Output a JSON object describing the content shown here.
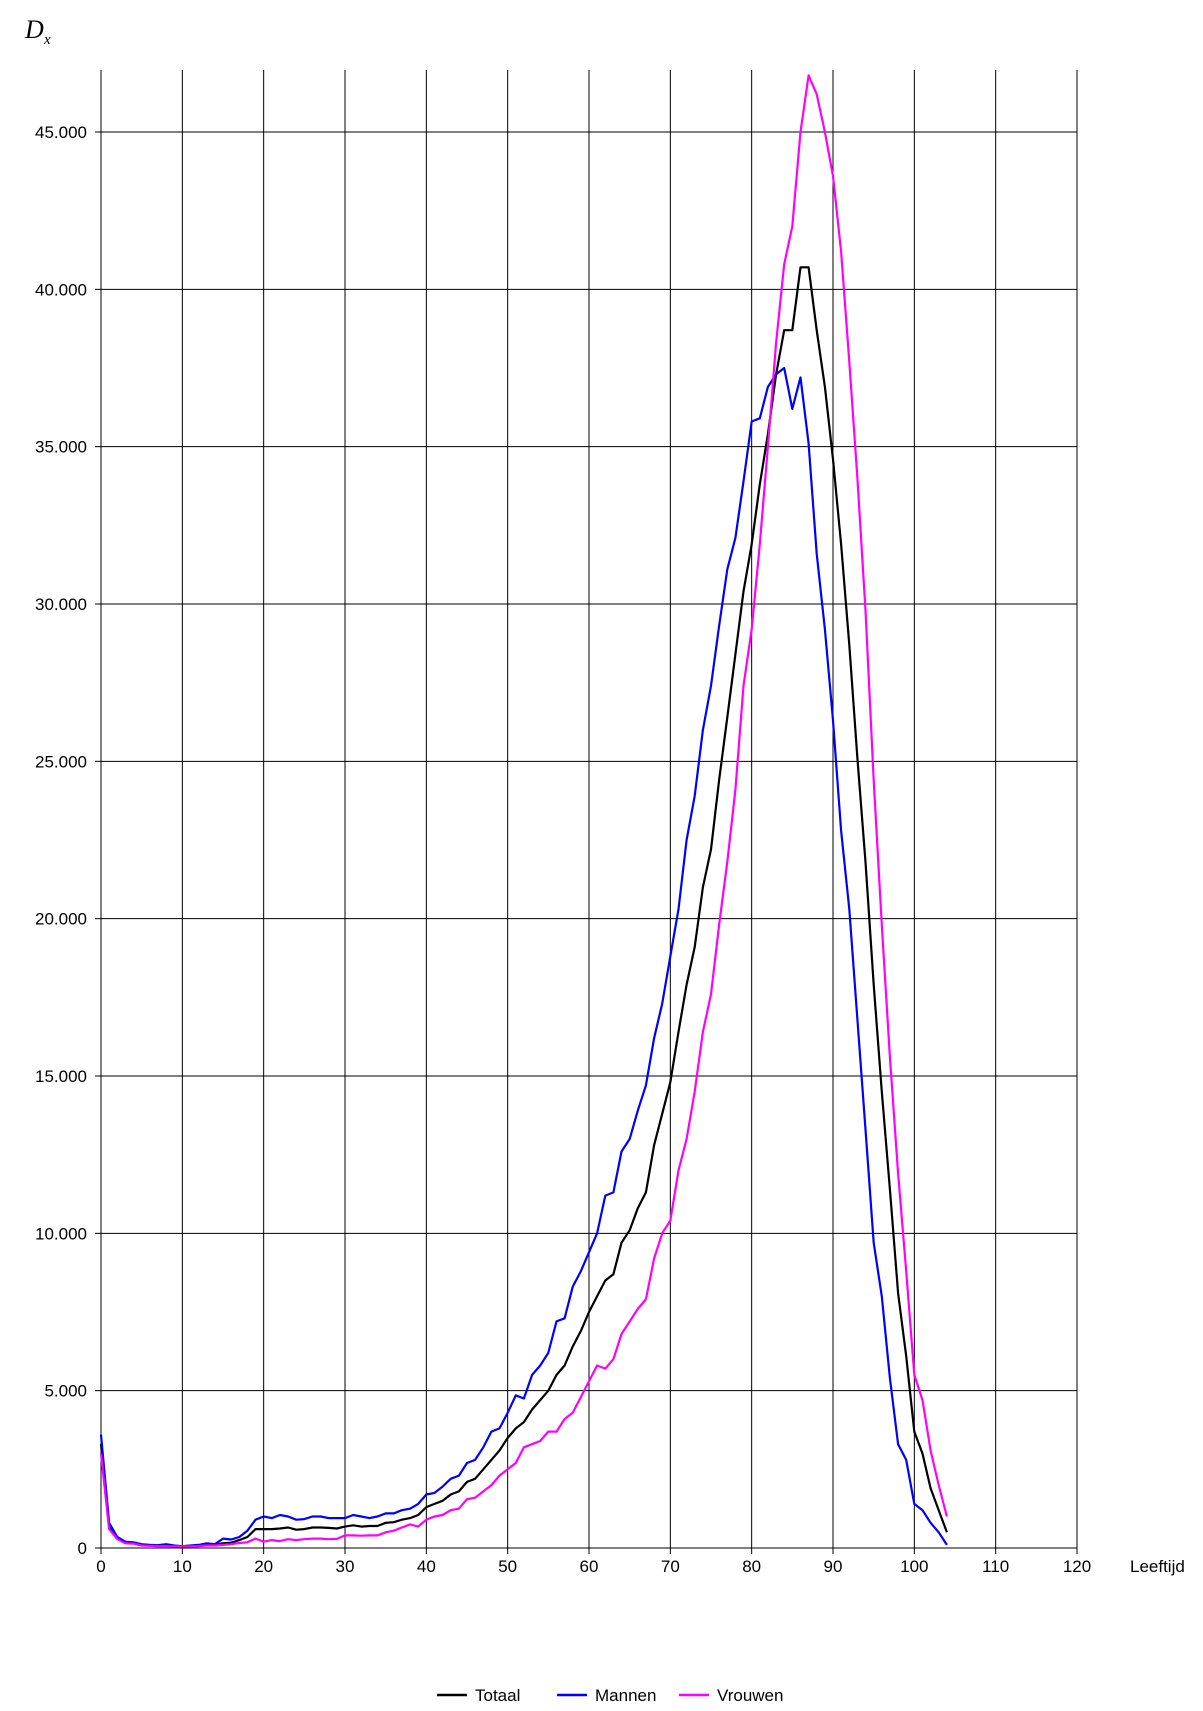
{
  "chart_data": {
    "type": "line",
    "title": "",
    "ylabel": "D",
    "ylabel_subscript": "x",
    "xlabel": "Leeftijd",
    "xlim": [
      0,
      120
    ],
    "ylim": [
      0,
      47500
    ],
    "xticks": [
      0,
      10,
      20,
      30,
      40,
      50,
      60,
      70,
      80,
      90,
      100,
      110,
      120
    ],
    "yticks": [
      0,
      5000,
      10000,
      15000,
      20000,
      25000,
      30000,
      35000,
      40000,
      45000
    ],
    "ytick_labels": [
      "0",
      "5.000",
      "10.000",
      "15.000",
      "20.000",
      "25.000",
      "30.000",
      "35.000",
      "40.000",
      "45.000"
    ],
    "grid": true,
    "legend_position": "bottom-center",
    "x": [
      0,
      1,
      2,
      3,
      4,
      5,
      6,
      7,
      8,
      9,
      10,
      11,
      12,
      13,
      14,
      15,
      16,
      17,
      18,
      19,
      20,
      21,
      22,
      23,
      24,
      25,
      26,
      27,
      28,
      29,
      30,
      31,
      32,
      33,
      34,
      35,
      36,
      37,
      38,
      39,
      40,
      41,
      42,
      43,
      44,
      45,
      46,
      47,
      48,
      49,
      50,
      51,
      52,
      53,
      54,
      55,
      56,
      57,
      58,
      59,
      60,
      61,
      62,
      63,
      64,
      65,
      66,
      67,
      68,
      69,
      70,
      71,
      72,
      73,
      74,
      75,
      76,
      77,
      78,
      79,
      80,
      81,
      82,
      83,
      84,
      85,
      86,
      87,
      88,
      89,
      90,
      91,
      92,
      93,
      94,
      95,
      96,
      97,
      98,
      99,
      100,
      101,
      102,
      103,
      104
    ],
    "series": [
      {
        "name": "Totaal",
        "color": "#000000",
        "values": [
          3300,
          700,
          300,
          180,
          160,
          100,
          90,
          80,
          90,
          70,
          60,
          70,
          90,
          120,
          110,
          150,
          170,
          250,
          350,
          600,
          600,
          600,
          620,
          650,
          580,
          600,
          650,
          650,
          640,
          620,
          680,
          720,
          680,
          700,
          700,
          800,
          820,
          900,
          950,
          1050,
          1300,
          1400,
          1500,
          1700,
          1800,
          2100,
          2200,
          2500,
          2800,
          3100,
          3500,
          3800,
          4000,
          4400,
          4700,
          5000,
          5500,
          5800,
          6400,
          6900,
          7500,
          8000,
          8500,
          8700,
          9700,
          10100,
          10800,
          11300,
          12800,
          13800,
          14800,
          16400,
          17900,
          19100,
          21000,
          22200,
          24400,
          26400,
          28400,
          30400,
          31900,
          33800,
          35400,
          37300,
          38700,
          38700,
          40700,
          40700,
          38700,
          36900,
          34600,
          31900,
          28700,
          25100,
          21800,
          17900,
          14500,
          11400,
          8100,
          6100,
          3700,
          3000,
          1900,
          1200,
          500
        ]
      },
      {
        "name": "Mannen",
        "color": "#0000ff",
        "values": [
          3600,
          800,
          350,
          200,
          180,
          120,
          100,
          90,
          120,
          80,
          50,
          80,
          100,
          150,
          120,
          300,
          270,
          350,
          550,
          900,
          1000,
          950,
          1050,
          1000,
          900,
          920,
          1000,
          1000,
          950,
          950,
          950,
          1050,
          1000,
          950,
          1000,
          1100,
          1100,
          1200,
          1250,
          1400,
          1700,
          1750,
          1950,
          2200,
          2300,
          2700,
          2800,
          3200,
          3700,
          3800,
          4300,
          4850,
          4750,
          5500,
          5800,
          6200,
          7200,
          7300,
          8300,
          8800,
          9400,
          10000,
          11200,
          11300,
          12600,
          13000,
          13900,
          14700,
          16200,
          17300,
          18800,
          20300,
          22500,
          23900,
          26000,
          27400,
          29300,
          31100,
          32100,
          33900,
          35800,
          35900,
          36900,
          37300,
          37500,
          36200,
          37200,
          35100,
          31600,
          29200,
          26300,
          22800,
          20300,
          16800,
          13300,
          9700,
          8000,
          5400,
          3300,
          2800,
          1400,
          1200,
          800,
          500,
          100
        ]
      },
      {
        "name": "Vrouwen",
        "color": "#ff00ff",
        "values": [
          3000,
          600,
          280,
          150,
          140,
          80,
          70,
          60,
          60,
          50,
          50,
          50,
          60,
          80,
          80,
          100,
          120,
          160,
          180,
          300,
          200,
          250,
          220,
          280,
          250,
          280,
          300,
          300,
          280,
          290,
          400,
          400,
          390,
          400,
          400,
          500,
          550,
          650,
          750,
          680,
          900,
          1000,
          1050,
          1200,
          1250,
          1550,
          1600,
          1800,
          2000,
          2300,
          2500,
          2700,
          3200,
          3300,
          3400,
          3700,
          3700,
          4100,
          4300,
          4800,
          5300,
          5800,
          5700,
          6000,
          6800,
          7200,
          7600,
          7900,
          9200,
          10000,
          10400,
          12000,
          13000,
          14500,
          16400,
          17600,
          19800,
          21800,
          24100,
          27400,
          29200,
          31900,
          35000,
          38300,
          40800,
          42000,
          45000,
          46800,
          46200,
          45000,
          43600,
          41200,
          37700,
          34000,
          29800,
          24400,
          19800,
          15600,
          11900,
          8800,
          5500,
          4700,
          3100,
          2000,
          1000
        ]
      }
    ]
  }
}
